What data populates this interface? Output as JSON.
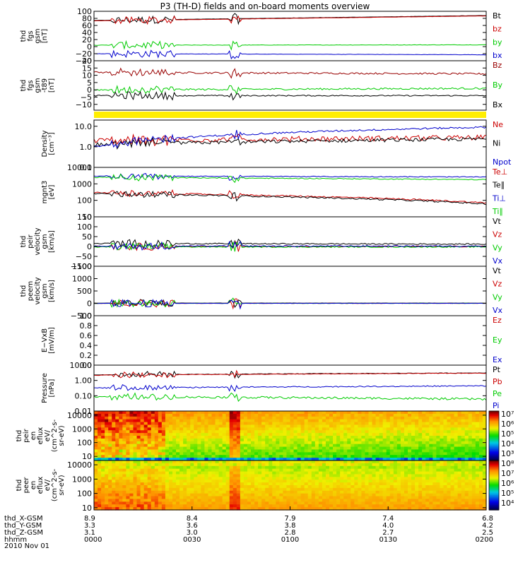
{
  "chart_data": {
    "type": "line",
    "title": "P3 (TH-D) fields and on-board moments overview",
    "date_label": "2010 Nov 01",
    "panels": [
      {
        "id": "fgs_gsm",
        "ylabel": [
          "thd",
          "fgs",
          "gsm",
          "[nT]"
        ],
        "ylim": [
          -40,
          100
        ],
        "scale": "linear",
        "yticks": [
          {
            "v": 100,
            "label": "100"
          },
          {
            "v": 80,
            "label": "80"
          },
          {
            "v": 60,
            "label": "60"
          },
          {
            "v": 40,
            "label": "40"
          },
          {
            "v": 20,
            "label": "20"
          },
          {
            "v": 0,
            "label": "0"
          },
          {
            "v": -20,
            "label": "−20"
          },
          {
            "v": -40,
            "label": "−40"
          }
        ],
        "series": [
          {
            "name": "Bt",
            "color": "#000000",
            "base": 74,
            "end": 88,
            "noise": 0.6
          },
          {
            "name": "bz",
            "color": "#cc0000",
            "base": 73,
            "end": 87,
            "noise": 0.6
          },
          {
            "name": "by",
            "color": "#00cc00",
            "base": 4,
            "end": 5,
            "noise": 1.2
          },
          {
            "name": "bx",
            "color": "#0000cc",
            "base": -20,
            "end": -23,
            "noise": 0.9
          }
        ]
      },
      {
        "id": "fgs_sm",
        "ylabel": [
          "thd",
          "fgs",
          "gsm",
          "-t89",
          "[nT]"
        ],
        "ylim": [
          -14,
          20
        ],
        "scale": "linear",
        "yticks": [
          {
            "v": 20,
            "label": "20"
          },
          {
            "v": 15,
            "label": "15"
          },
          {
            "v": 10,
            "label": "10"
          },
          {
            "v": 5,
            "label": "5"
          },
          {
            "v": 0,
            "label": "0"
          },
          {
            "v": -5,
            "label": "−5"
          },
          {
            "v": -10,
            "label": "−10"
          }
        ],
        "series": [
          {
            "name": "Bz",
            "color": "#990000",
            "base": 12,
            "end": 11,
            "noise": 1.2
          },
          {
            "name": "By",
            "color": "#00cc00",
            "base": 0,
            "end": 1,
            "noise": 1.2
          },
          {
            "name": "Bx",
            "color": "#000000",
            "base": -4,
            "end": -4,
            "noise": 0.8
          }
        ]
      },
      {
        "id": "density",
        "ylabel": [
          "Density",
          "[cm⁻³]"
        ],
        "ylim": [
          0.1,
          20
        ],
        "scale": "log",
        "yticks": [
          {
            "v": 10,
            "label": "10.0"
          },
          {
            "v": 1,
            "label": "1.0"
          },
          {
            "v": 0.1,
            "label": "0.1"
          }
        ],
        "series": [
          {
            "name": "Ne",
            "color": "#cc0000",
            "base": 2.0,
            "end": 2.8,
            "noise": 0.15
          },
          {
            "name": "Ni",
            "color": "#000000",
            "base": 1.3,
            "end": 2.4,
            "noise": 0.1
          },
          {
            "name": "Npot",
            "color": "#0000cc",
            "base": 1.0,
            "end": 9.0,
            "noise": 0.05
          }
        ]
      },
      {
        "id": "temperature",
        "ylabel": [
          "mgnt3",
          "[eV]"
        ],
        "ylim": [
          10,
          10000
        ],
        "scale": "log",
        "yticks": [
          {
            "v": 10000,
            "label": "10000"
          },
          {
            "v": 1000,
            "label": "1000"
          },
          {
            "v": 100,
            "label": "100"
          },
          {
            "v": 10,
            "label": "10"
          }
        ],
        "series": [
          {
            "name": "Te⊥",
            "color": "#cc0000",
            "base": 300,
            "end": 70,
            "noise": 0.05
          },
          {
            "name": "Te∥",
            "color": "#000000",
            "base": 260,
            "end": 60,
            "noise": 0.05
          },
          {
            "name": "Ti⊥",
            "color": "#0000cc",
            "base": 3000,
            "end": 2600,
            "noise": 0.03
          },
          {
            "name": "Ti∥",
            "color": "#00cc00",
            "base": 2500,
            "end": 1800,
            "noise": 0.03
          }
        ]
      },
      {
        "id": "peir_velocity",
        "ylabel": [
          "thd",
          "peir",
          "velocity",
          "gsm",
          "[km/s]"
        ],
        "ylim": [
          -100,
          150
        ],
        "scale": "linear",
        "yticks": [
          {
            "v": 150,
            "label": "150"
          },
          {
            "v": 100,
            "label": "100"
          },
          {
            "v": 50,
            "label": "50"
          },
          {
            "v": 0,
            "label": "0"
          },
          {
            "v": -50,
            "label": "−50"
          },
          {
            "v": -100,
            "label": "−100"
          }
        ],
        "series": [
          {
            "name": "Vt",
            "color": "#000000",
            "base": 15,
            "end": 12,
            "noise": 6
          },
          {
            "name": "Vz",
            "color": "#cc0000",
            "base": 0,
            "end": 0,
            "noise": 6
          },
          {
            "name": "Vy",
            "color": "#00cc00",
            "base": -2,
            "end": -2,
            "noise": 6
          },
          {
            "name": "Vx",
            "color": "#0000cc",
            "base": 2,
            "end": 2,
            "noise": 6
          }
        ]
      },
      {
        "id": "peem_velocity",
        "ylabel": [
          "thd",
          "peem",
          "velocity",
          "gsm",
          "[km/s]"
        ],
        "ylim": [
          -500,
          1500
        ],
        "scale": "linear",
        "yticks": [
          {
            "v": 1500,
            "label": "1500"
          },
          {
            "v": 1000,
            "label": "1000"
          },
          {
            "v": 500,
            "label": "500"
          },
          {
            "v": 0,
            "label": "0"
          },
          {
            "v": -500,
            "label": "−500"
          }
        ],
        "series": [
          {
            "name": "Vt",
            "color": "#000000",
            "base": 10,
            "end": 10,
            "noise": 8
          },
          {
            "name": "Vz",
            "color": "#cc0000",
            "base": 0,
            "end": 0,
            "noise": 10
          },
          {
            "name": "Vy",
            "color": "#00cc00",
            "base": 0,
            "end": 0,
            "noise": 10
          },
          {
            "name": "Vx",
            "color": "#0000cc",
            "base": 0,
            "end": 0,
            "noise": 10
          }
        ]
      },
      {
        "id": "efield",
        "ylabel": [
          "E−VxB",
          "[mV/m]"
        ],
        "ylim": [
          0,
          1
        ],
        "scale": "linear",
        "yticks": [
          {
            "v": 1,
            "label": "1.0"
          },
          {
            "v": 0.8,
            "label": "0.8"
          },
          {
            "v": 0.6,
            "label": "0.6"
          },
          {
            "v": 0.4,
            "label": "0.4"
          },
          {
            "v": 0.2,
            "label": "0.2"
          },
          {
            "v": 0,
            "label": "0.0"
          }
        ],
        "series": [
          {
            "name": "Ez",
            "color": "#cc0000"
          },
          {
            "name": "Ey",
            "color": "#00cc00"
          },
          {
            "name": "Ex",
            "color": "#0000cc"
          }
        ]
      },
      {
        "id": "pressure",
        "ylabel": [
          "Pressure",
          "[nPa]"
        ],
        "ylim": [
          0.01,
          10
        ],
        "scale": "log",
        "yticks": [
          {
            "v": 10,
            "label": "10.00"
          },
          {
            "v": 1,
            "label": "1.00"
          },
          {
            "v": 0.1,
            "label": "0.10"
          },
          {
            "v": 0.01,
            "label": "0.01"
          }
        ],
        "series": [
          {
            "name": "Pt",
            "color": "#000000",
            "base": 2.3,
            "end": 3.1,
            "noise": 0.02
          },
          {
            "name": "Pb",
            "color": "#cc0000",
            "base": 2.2,
            "end": 3.0,
            "noise": 0.02
          },
          {
            "name": "Pe",
            "color": "#00cc00",
            "base": 0.09,
            "end": 0.06,
            "noise": 0.08
          },
          {
            "name": "Pi",
            "color": "#0000cc",
            "base": 0.32,
            "end": 0.44,
            "noise": 0.04
          }
        ]
      },
      {
        "id": "peir_eflux",
        "type": "heatmap",
        "ylabel": [
          "thd",
          "peir",
          "en",
          "eflux",
          "eV/",
          "(cm^2-s-",
          "sr-eV)"
        ],
        "ylim": [
          5,
          20000
        ],
        "scale": "log",
        "yticks": [
          {
            "v": 10000,
            "label": "10000"
          },
          {
            "v": 1000,
            "label": "1000"
          },
          {
            "v": 100,
            "label": "100"
          },
          {
            "v": 10,
            "label": "10"
          }
        ],
        "colorbar": {
          "min_exp": 3,
          "max_exp": 7,
          "labels": [
            "10⁷",
            "10⁶",
            "10⁵",
            "10⁴",
            "10³"
          ]
        }
      },
      {
        "id": "peer_eflux",
        "type": "heatmap",
        "ylabel": [
          "thd",
          "peer",
          "en",
          "eflux",
          "eV/",
          "(cm^2-s-",
          "sr-eV)"
        ],
        "ylim": [
          7,
          20000
        ],
        "scale": "log",
        "yticks": [
          {
            "v": 10000,
            "label": "10000"
          },
          {
            "v": 1000,
            "label": "1000"
          },
          {
            "v": 100,
            "label": "100"
          },
          {
            "v": 10,
            "label": "10"
          }
        ],
        "colorbar": {
          "min_exp": 3.5,
          "max_exp": 8,
          "labels": [
            "10⁸",
            "10⁷",
            "10⁶",
            "10⁵",
            "10⁴"
          ]
        }
      }
    ],
    "x_axis": {
      "range_minutes": [
        0,
        120
      ],
      "tick_minutes": [
        0,
        30,
        60,
        90,
        120
      ],
      "rows": [
        {
          "label": "thd_X-GSM",
          "values": [
            "8.9",
            "8.4",
            "7.9",
            "7.4",
            "6.8"
          ]
        },
        {
          "label": "thd_Y-GSM",
          "values": [
            "3.3",
            "3.6",
            "3.8",
            "4.0",
            "4.2"
          ]
        },
        {
          "label": "thd_Z-GSM",
          "values": [
            "3.1",
            "3.0",
            "2.8",
            "2.7",
            "2.5"
          ]
        },
        {
          "label": "hhmm",
          "values": [
            "0000",
            "0030",
            "0100",
            "0130",
            "0200"
          ]
        }
      ]
    }
  }
}
